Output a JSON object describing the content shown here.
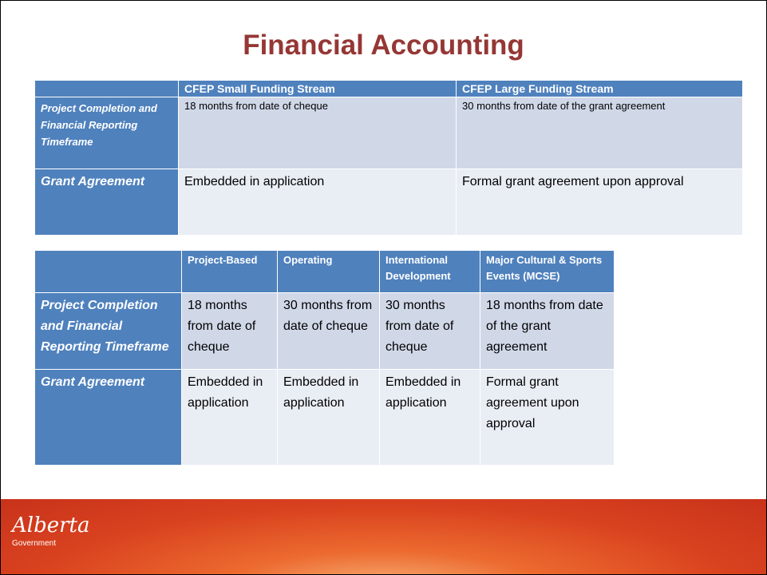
{
  "title": "Financial Accounting",
  "table1": {
    "header": [
      "CFEP Small Funding Stream",
      "CFEP Large Funding Stream"
    ],
    "rows": [
      [
        "Project Completion and Financial Reporting Timeframe",
        "18 months from date of cheque",
        "30 months from date of the grant agreement"
      ],
      [
        "Grant Agreement",
        "Embedded in application",
        "Formal grant agreement upon approval"
      ]
    ]
  },
  "table2": {
    "header": [
      "Project-Based",
      "Operating",
      "International Development",
      "Major Cultural & Sports Events (MCSE)"
    ],
    "rows": [
      [
        "Project Completion and Financial Reporting Timeframe",
        "18 months from date of cheque",
        "30 months from date of cheque",
        "30 months from date of cheque",
        "18 months from date of the grant agreement"
      ],
      [
        "Grant Agreement",
        "Embedded in application",
        "Embedded in application",
        "Embedded in application",
        "Formal grant agreement upon approval"
      ]
    ]
  },
  "footer": {
    "logo": "Alberta",
    "logo_sub": "Government"
  }
}
